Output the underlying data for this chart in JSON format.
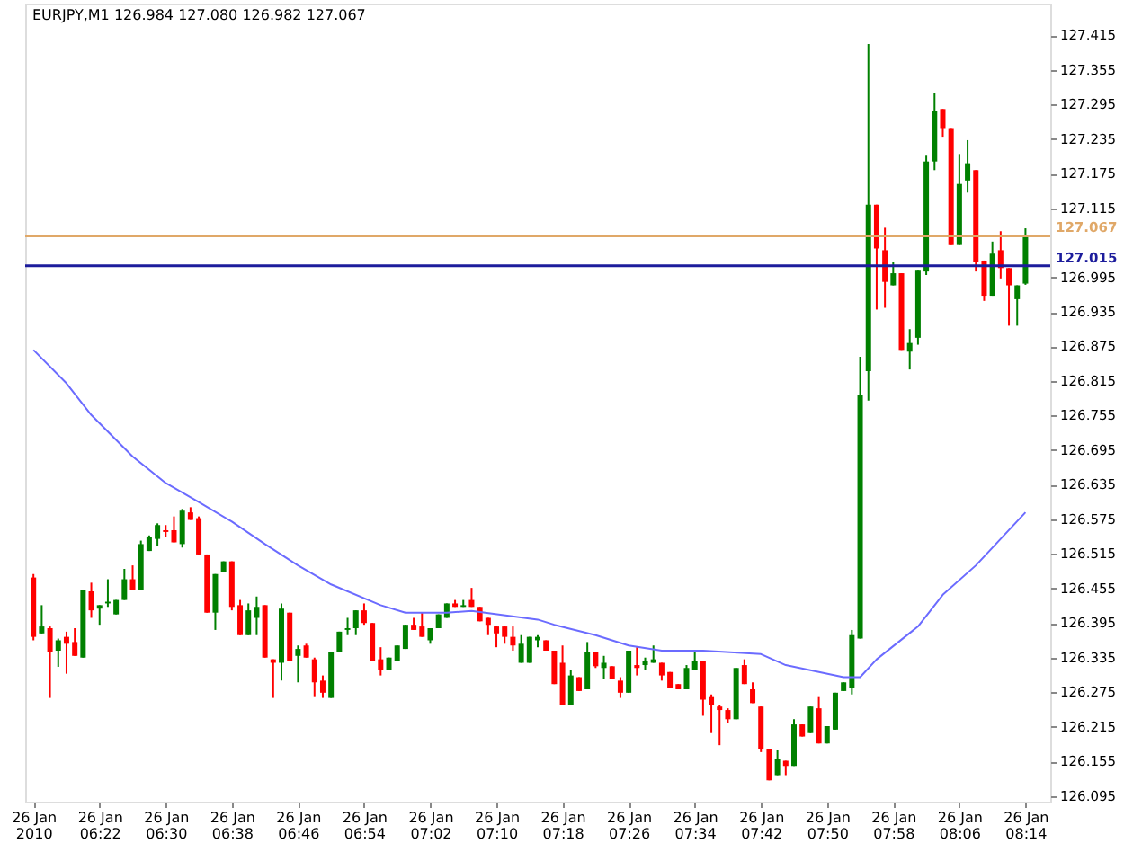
{
  "chart_data": {
    "type": "candlestick",
    "title": "EURJPY,M1  126.984 127.080 126.982 127.067",
    "x": [
      "2010-01-26T06:14",
      "2010-01-26T06:15",
      "2010-01-26T06:16",
      "2010-01-26T06:17",
      "2010-01-26T06:18",
      "2010-01-26T06:19",
      "2010-01-26T06:20",
      "2010-01-26T06:21",
      "2010-01-26T06:22",
      "2010-01-26T06:23",
      "2010-01-26T06:24",
      "2010-01-26T06:25",
      "2010-01-26T06:26",
      "2010-01-26T06:27",
      "2010-01-26T06:28",
      "2010-01-26T06:29",
      "2010-01-26T06:30",
      "2010-01-26T06:31",
      "2010-01-26T06:32",
      "2010-01-26T06:33",
      "2010-01-26T06:34",
      "2010-01-26T06:35",
      "2010-01-26T06:36",
      "2010-01-26T06:37",
      "2010-01-26T06:38",
      "2010-01-26T06:39",
      "2010-01-26T06:40",
      "2010-01-26T06:41",
      "2010-01-26T06:42",
      "2010-01-26T06:43",
      "2010-01-26T06:44",
      "2010-01-26T06:45",
      "2010-01-26T06:46",
      "2010-01-26T06:47",
      "2010-01-26T06:48",
      "2010-01-26T06:49",
      "2010-01-26T06:50",
      "2010-01-26T06:51",
      "2010-01-26T06:52",
      "2010-01-26T06:53",
      "2010-01-26T06:54",
      "2010-01-26T06:55",
      "2010-01-26T06:56",
      "2010-01-26T06:57",
      "2010-01-26T06:58",
      "2010-01-26T06:59",
      "2010-01-26T07:00",
      "2010-01-26T07:01",
      "2010-01-26T07:02",
      "2010-01-26T07:03",
      "2010-01-26T07:04",
      "2010-01-26T07:05",
      "2010-01-26T07:06",
      "2010-01-26T07:07",
      "2010-01-26T07:08",
      "2010-01-26T07:09",
      "2010-01-26T07:10",
      "2010-01-26T07:11",
      "2010-01-26T07:12",
      "2010-01-26T07:13",
      "2010-01-26T07:14",
      "2010-01-26T07:15",
      "2010-01-26T07:16",
      "2010-01-26T07:17",
      "2010-01-26T07:18",
      "2010-01-26T07:19",
      "2010-01-26T07:20",
      "2010-01-26T07:21",
      "2010-01-26T07:22",
      "2010-01-26T07:23",
      "2010-01-26T07:24",
      "2010-01-26T07:25",
      "2010-01-26T07:26",
      "2010-01-26T07:27",
      "2010-01-26T07:28",
      "2010-01-26T07:29",
      "2010-01-26T07:30",
      "2010-01-26T07:31",
      "2010-01-26T07:32",
      "2010-01-26T07:33",
      "2010-01-26T07:34",
      "2010-01-26T07:35",
      "2010-01-26T07:36",
      "2010-01-26T07:37",
      "2010-01-26T07:38",
      "2010-01-26T07:39",
      "2010-01-26T07:40",
      "2010-01-26T07:41",
      "2010-01-26T07:42",
      "2010-01-26T07:43",
      "2010-01-26T07:44",
      "2010-01-26T07:45",
      "2010-01-26T07:46",
      "2010-01-26T07:47",
      "2010-01-26T07:48",
      "2010-01-26T07:49",
      "2010-01-26T07:50",
      "2010-01-26T07:51",
      "2010-01-26T07:52",
      "2010-01-26T07:53",
      "2010-01-26T07:54",
      "2010-01-26T07:55",
      "2010-01-26T07:56",
      "2010-01-26T07:57",
      "2010-01-26T07:58",
      "2010-01-26T07:59",
      "2010-01-26T08:00",
      "2010-01-26T08:01",
      "2010-01-26T08:02",
      "2010-01-26T08:03",
      "2010-01-26T08:04",
      "2010-01-26T08:05",
      "2010-01-26T08:06",
      "2010-01-26T08:07",
      "2010-01-26T08:08",
      "2010-01-26T08:09",
      "2010-01-26T08:10",
      "2010-01-26T08:11",
      "2010-01-26T08:12",
      "2010-01-26T08:13",
      "2010-01-26T08:14"
    ],
    "ohlc": [
      [
        126.474,
        126.48,
        126.365,
        126.371
      ],
      [
        126.377,
        126.426,
        126.377,
        126.389
      ],
      [
        126.386,
        126.389,
        126.265,
        126.344
      ],
      [
        126.347,
        126.368,
        126.319,
        126.365
      ],
      [
        126.371,
        126.38,
        126.307,
        126.359
      ],
      [
        126.362,
        126.386,
        126.338,
        126.338
      ],
      [
        126.335,
        126.453,
        126.335,
        126.453
      ],
      [
        126.45,
        126.465,
        126.404,
        126.417
      ],
      [
        126.42,
        126.426,
        126.392,
        126.426
      ],
      [
        126.429,
        126.471,
        126.423,
        126.432
      ],
      [
        126.41,
        126.435,
        126.41,
        126.435
      ],
      [
        126.435,
        126.489,
        126.435,
        126.471
      ],
      [
        126.471,
        126.495,
        126.453,
        126.453
      ],
      [
        126.453,
        126.538,
        126.453,
        126.532
      ],
      [
        126.52,
        126.547,
        126.52,
        126.544
      ],
      [
        126.541,
        126.568,
        126.529,
        126.565
      ],
      [
        126.556,
        126.565,
        126.544,
        126.553
      ],
      [
        126.556,
        126.58,
        126.535,
        126.535
      ],
      [
        126.532,
        126.593,
        126.526,
        126.59
      ],
      [
        126.587,
        126.596,
        126.574,
        126.574
      ],
      [
        126.577,
        126.58,
        126.514,
        126.514
      ],
      [
        126.514,
        126.514,
        126.413,
        126.413
      ],
      [
        126.413,
        126.48,
        126.383,
        126.48
      ],
      [
        126.483,
        126.502,
        126.483,
        126.502
      ],
      [
        126.502,
        126.502,
        126.417,
        126.423
      ],
      [
        126.426,
        126.435,
        126.374,
        126.374
      ],
      [
        126.374,
        126.429,
        126.374,
        126.417
      ],
      [
        126.404,
        126.441,
        126.374,
        126.423
      ],
      [
        126.426,
        126.426,
        126.335,
        126.335
      ],
      [
        126.332,
        126.332,
        126.265,
        126.326
      ],
      [
        126.326,
        126.429,
        126.295,
        126.42
      ],
      [
        126.413,
        126.413,
        126.329,
        126.329
      ],
      [
        126.338,
        126.356,
        126.292,
        126.35
      ],
      [
        126.356,
        126.359,
        126.335,
        126.335
      ],
      [
        126.332,
        126.335,
        126.268,
        126.292
      ],
      [
        126.295,
        126.304,
        126.265,
        126.274
      ],
      [
        126.265,
        126.344,
        126.265,
        126.344
      ],
      [
        126.344,
        126.38,
        126.344,
        126.38
      ],
      [
        126.383,
        126.404,
        126.374,
        126.386
      ],
      [
        126.386,
        126.417,
        126.374,
        126.417
      ],
      [
        126.417,
        126.429,
        126.392,
        126.395
      ],
      [
        126.395,
        126.395,
        126.329,
        126.329
      ],
      [
        126.332,
        126.353,
        126.304,
        126.314
      ],
      [
        126.314,
        126.335,
        126.314,
        126.335
      ],
      [
        126.329,
        126.356,
        126.329,
        126.356
      ],
      [
        126.35,
        126.392,
        126.35,
        126.392
      ],
      [
        126.392,
        126.404,
        126.383,
        126.383
      ],
      [
        126.389,
        126.413,
        126.371,
        126.371
      ],
      [
        126.365,
        126.386,
        126.359,
        126.386
      ],
      [
        126.386,
        126.41,
        126.386,
        126.41
      ],
      [
        126.404,
        126.429,
        126.404,
        126.429
      ],
      [
        126.429,
        126.435,
        126.423,
        126.423
      ],
      [
        126.423,
        126.435,
        126.423,
        126.426
      ],
      [
        126.435,
        126.456,
        126.423,
        126.423
      ],
      [
        126.423,
        126.423,
        126.398,
        126.398
      ],
      [
        126.404,
        126.404,
        126.374,
        126.392
      ],
      [
        126.389,
        126.389,
        126.353,
        126.377
      ],
      [
        126.389,
        126.389,
        126.359,
        126.371
      ],
      [
        126.371,
        126.389,
        126.347,
        126.356
      ],
      [
        126.326,
        126.374,
        126.326,
        126.359
      ],
      [
        126.326,
        126.371,
        126.326,
        126.371
      ],
      [
        126.365,
        126.374,
        126.353,
        126.371
      ],
      [
        126.365,
        126.365,
        126.347,
        126.347
      ],
      [
        126.347,
        126.347,
        126.289,
        126.289
      ],
      [
        126.326,
        126.356,
        126.253,
        126.253
      ],
      [
        126.253,
        126.314,
        126.253,
        126.304
      ],
      [
        126.301,
        126.301,
        126.277,
        126.277
      ],
      [
        126.28,
        126.362,
        126.28,
        126.344
      ],
      [
        126.344,
        126.344,
        126.317,
        126.32
      ],
      [
        126.317,
        126.338,
        126.298,
        126.326
      ],
      [
        126.32,
        126.32,
        126.298,
        126.298
      ],
      [
        126.295,
        126.301,
        126.265,
        126.274
      ],
      [
        126.274,
        126.347,
        126.274,
        126.347
      ],
      [
        126.322,
        126.353,
        126.304,
        126.317
      ],
      [
        126.322,
        126.335,
        126.314,
        126.329
      ],
      [
        126.326,
        126.356,
        126.326,
        126.332
      ],
      [
        126.326,
        126.326,
        126.295,
        126.304
      ],
      [
        126.31,
        126.31,
        126.283,
        126.283
      ],
      [
        126.289,
        126.289,
        126.28,
        126.28
      ],
      [
        126.28,
        126.322,
        126.28,
        126.317
      ],
      [
        126.314,
        126.344,
        126.314,
        126.329
      ],
      [
        126.329,
        126.329,
        126.234,
        126.262
      ],
      [
        126.268,
        126.271,
        126.204,
        126.253
      ],
      [
        126.25,
        126.253,
        126.183,
        126.244
      ],
      [
        126.244,
        126.247,
        126.222,
        126.228
      ],
      [
        126.228,
        126.317,
        126.228,
        126.317
      ],
      [
        126.322,
        126.332,
        126.289,
        126.289
      ],
      [
        126.28,
        126.292,
        126.256,
        126.256
      ],
      [
        126.25,
        126.25,
        126.171,
        126.177
      ],
      [
        126.177,
        126.177,
        126.122,
        126.122
      ],
      [
        126.131,
        126.174,
        126.131,
        126.159
      ],
      [
        126.156,
        126.156,
        126.131,
        126.147
      ],
      [
        126.147,
        126.228,
        126.147,
        126.219
      ],
      [
        126.219,
        126.219,
        126.198,
        126.198
      ],
      [
        126.204,
        126.25,
        126.204,
        126.25
      ],
      [
        126.247,
        126.268,
        126.186,
        126.186
      ],
      [
        126.186,
        126.216,
        126.186,
        126.216
      ],
      [
        126.21,
        126.274,
        126.21,
        126.274
      ],
      [
        126.277,
        126.292,
        126.277,
        126.292
      ],
      [
        126.283,
        126.383,
        126.271,
        126.374
      ],
      [
        126.368,
        126.857,
        126.368,
        126.79
      ],
      [
        126.832,
        127.4,
        126.781,
        127.121
      ],
      [
        127.121,
        127.121,
        126.939,
        127.045
      ],
      [
        127.042,
        127.081,
        126.942,
        126.987
      ],
      [
        126.981,
        127.021,
        126.981,
        127.002
      ],
      [
        127.002,
        127.002,
        126.869,
        126.869
      ],
      [
        126.866,
        126.905,
        126.835,
        126.881
      ],
      [
        126.89,
        127.008,
        126.878,
        127.008
      ],
      [
        127.005,
        127.206,
        126.999,
        127.196
      ],
      [
        127.196,
        127.315,
        127.181,
        127.284
      ],
      [
        127.287,
        127.287,
        127.239,
        127.254
      ],
      [
        127.254,
        127.254,
        127.051,
        127.051
      ],
      [
        127.051,
        127.209,
        127.051,
        127.157
      ],
      [
        127.163,
        127.233,
        127.142,
        127.193
      ],
      [
        127.181,
        127.181,
        127.005,
        127.021
      ],
      [
        127.024,
        127.024,
        126.954,
        126.963
      ],
      [
        126.963,
        127.057,
        126.963,
        127.036
      ],
      [
        127.042,
        127.075,
        126.993,
        127.011
      ],
      [
        127.011,
        127.011,
        126.911,
        126.981
      ],
      [
        126.957,
        126.981,
        126.911,
        126.981
      ],
      [
        126.984,
        127.08,
        126.982,
        127.067
      ]
    ],
    "colors": [
      "#ff0000",
      "#008000",
      "#ff0000",
      "#008000",
      "#ff0000",
      "#ff0000",
      "#008000",
      "#ff0000",
      "#008000",
      "#008000",
      "#008000",
      "#008000",
      "#ff0000",
      "#008000",
      "#008000",
      "#008000",
      "#ff0000",
      "#ff0000",
      "#008000",
      "#ff0000",
      "#ff0000",
      "#ff0000",
      "#008000",
      "#008000",
      "#ff0000",
      "#ff0000",
      "#008000",
      "#008000",
      "#ff0000",
      "#ff0000",
      "#008000",
      "#ff0000",
      "#008000",
      "#ff0000",
      "#ff0000",
      "#ff0000",
      "#008000",
      "#008000",
      "#008000",
      "#008000",
      "#ff0000",
      "#ff0000",
      "#ff0000",
      "#008000",
      "#008000",
      "#008000",
      "#ff0000",
      "#ff0000",
      "#008000",
      "#008000",
      "#008000",
      "#ff0000",
      "#008000",
      "#ff0000",
      "#ff0000",
      "#ff0000",
      "#ff0000",
      "#ff0000",
      "#ff0000",
      "#008000",
      "#008000",
      "#008000",
      "#ff0000",
      "#ff0000",
      "#ff0000",
      "#008000",
      "#ff0000",
      "#008000",
      "#ff0000",
      "#008000",
      "#ff0000",
      "#ff0000",
      "#008000",
      "#ff0000",
      "#008000",
      "#008000",
      "#ff0000",
      "#ff0000",
      "#ff0000",
      "#008000",
      "#008000",
      "#ff0000",
      "#ff0000",
      "#ff0000",
      "#ff0000",
      "#008000",
      "#ff0000",
      "#ff0000",
      "#ff0000",
      "#ff0000",
      "#008000",
      "#ff0000",
      "#008000",
      "#ff0000",
      "#008000",
      "#ff0000",
      "#008000",
      "#008000",
      "#008000",
      "#008000",
      "#008000",
      "#008000",
      "#ff0000",
      "#ff0000",
      "#008000",
      "#ff0000",
      "#008000",
      "#008000",
      "#008000",
      "#008000",
      "#ff0000",
      "#ff0000",
      "#008000",
      "#008000",
      "#ff0000",
      "#ff0000",
      "#008000",
      "#ff0000",
      "#ff0000",
      "#008000",
      "#008000"
    ],
    "series": [
      {
        "type": "line",
        "color": "#6b6bff",
        "x": [
          "2010-01-26T06:14",
          "2010-01-26T06:18",
          "2010-01-26T06:21",
          "2010-01-26T06:26",
          "2010-01-26T06:30",
          "2010-01-26T06:34",
          "2010-01-26T06:38",
          "2010-01-26T06:42",
          "2010-01-26T06:46",
          "2010-01-26T06:50",
          "2010-01-26T06:56",
          "2010-01-26T06:59",
          "2010-01-26T07:04",
          "2010-01-26T07:07",
          "2010-01-26T07:15",
          "2010-01-26T07:17",
          "2010-01-26T07:22",
          "2010-01-26T07:26",
          "2010-01-26T07:30",
          "2010-01-26T07:35",
          "2010-01-26T07:42",
          "2010-01-26T07:45",
          "2010-01-26T07:52",
          "2010-01-26T07:54",
          "2010-01-26T07:56",
          "2010-01-26T08:01",
          "2010-01-26T08:04",
          "2010-01-26T08:08",
          "2010-01-26T08:11",
          "2010-01-26T08:14"
        ],
        "values": [
          126.869,
          126.811,
          126.756,
          126.684,
          126.638,
          126.605,
          126.571,
          126.532,
          126.495,
          126.462,
          126.426,
          126.413,
          126.413,
          126.416,
          126.401,
          126.392,
          126.374,
          126.356,
          126.347,
          126.347,
          126.341,
          126.322,
          126.301,
          126.301,
          126.332,
          126.389,
          126.444,
          126.495,
          126.541,
          126.587
        ]
      }
    ],
    "xlim": [
      "2010-01-26T06:13",
      "2010-01-26T08:17"
    ],
    "xticks": [
      {
        "value": "2010-01-26T06:14",
        "label": "26 Jan 2010"
      },
      {
        "value": "2010-01-26T06:22",
        "label": "26 Jan 06:22"
      },
      {
        "value": "2010-01-26T06:30",
        "label": "26 Jan 06:30"
      },
      {
        "value": "2010-01-26T06:38",
        "label": "26 Jan 06:38"
      },
      {
        "value": "2010-01-26T06:46",
        "label": "26 Jan 06:46"
      },
      {
        "value": "2010-01-26T06:54",
        "label": "26 Jan 06:54"
      },
      {
        "value": "2010-01-26T07:02",
        "label": "26 Jan 07:02"
      },
      {
        "value": "2010-01-26T07:10",
        "label": "26 Jan 07:10"
      },
      {
        "value": "2010-01-26T07:18",
        "label": "26 Jan 07:18"
      },
      {
        "value": "2010-01-26T07:26",
        "label": "26 Jan 07:26"
      },
      {
        "value": "2010-01-26T07:34",
        "label": "26 Jan 07:34"
      },
      {
        "value": "2010-01-26T07:42",
        "label": "26 Jan 07:42"
      },
      {
        "value": "2010-01-26T07:50",
        "label": "26 Jan 07:50"
      },
      {
        "value": "2010-01-26T07:58",
        "label": "26 Jan 07:58"
      },
      {
        "value": "2010-01-26T08:06",
        "label": "26 Jan 08:06"
      },
      {
        "value": "2010-01-26T08:14",
        "label": "26 Jan 08:14"
      }
    ],
    "ylim": [
      126.085,
      127.47
    ],
    "yticks": [
      126.095,
      126.155,
      126.215,
      126.275,
      126.335,
      126.395,
      126.455,
      126.515,
      126.575,
      126.635,
      126.695,
      126.755,
      126.815,
      126.875,
      126.935,
      126.995,
      127.115,
      127.175,
      127.235,
      127.295,
      127.355,
      127.415
    ],
    "ref_lines": [
      {
        "axis": "y",
        "value": 127.067,
        "label": "127.067",
        "color": "#e0a868"
      },
      {
        "axis": "y",
        "value": 127.015,
        "label": "127.015",
        "color": "#1c1c9c"
      }
    ]
  }
}
